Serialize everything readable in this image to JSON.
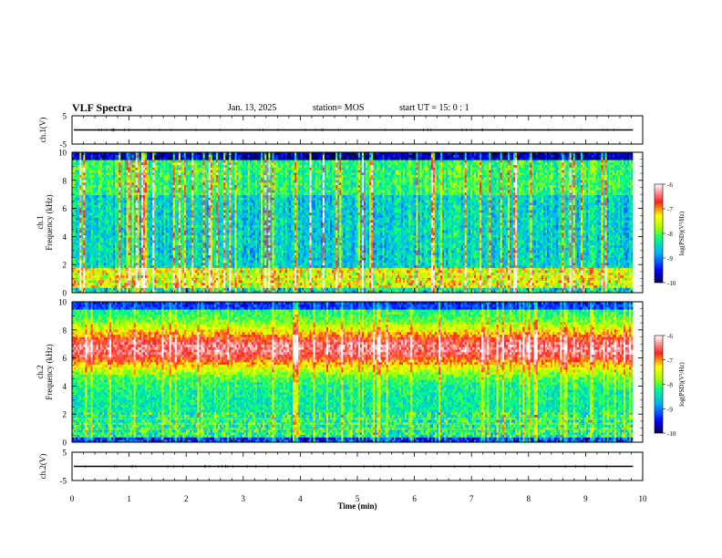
{
  "header": {
    "title": "VLF Spectra",
    "date": "Jan. 13, 2025",
    "station": "station= MOS",
    "start_ut": "start UT =   15: 0  : 1"
  },
  "chart_data": [
    {
      "id": "ch1-waveform",
      "type": "line",
      "ylabel": "ch.1(V)",
      "ylim": [
        -5,
        5
      ],
      "yticks": [
        "5",
        "-5"
      ],
      "xlim": [
        0,
        10
      ],
      "trace_level": 0,
      "trace_end": 9.83,
      "color": "#000000"
    },
    {
      "id": "ch1-spectrogram",
      "type": "heatmap",
      "ylabel": "ch.1",
      "ylabel2": "Frequency (kHz)",
      "ylim": [
        0,
        10
      ],
      "yticks": [
        "0",
        "2",
        "4",
        "6",
        "8",
        "10"
      ],
      "xlim": [
        0,
        10
      ],
      "data_end": 9.83,
      "colorbar": {
        "label": "log(PSD)(V²/Hz)",
        "range": [
          -10,
          -6
        ],
        "ticks": [
          "-6",
          "-7",
          "-8",
          "-9",
          "-10"
        ]
      }
    },
    {
      "id": "ch2-spectrogram",
      "type": "heatmap",
      "ylabel": "ch.2",
      "ylabel2": "Frequency (kHz)",
      "ylim": [
        0,
        10
      ],
      "yticks": [
        "0",
        "2",
        "4",
        "6",
        "8",
        "10"
      ],
      "xlim": [
        0,
        10
      ],
      "data_end": 9.83,
      "colorbar": {
        "label": "log(PSD)(V²/Hz)",
        "range": [
          -10,
          -6
        ],
        "ticks": [
          "-6",
          "-7",
          "-8",
          "-9",
          "-10"
        ]
      }
    },
    {
      "id": "ch2-waveform",
      "type": "line",
      "ylabel": "ch.2(V)",
      "ylim": [
        -5,
        5
      ],
      "yticks": [
        "5",
        "-5"
      ],
      "xlim": [
        0,
        10
      ],
      "trace_level": 0,
      "trace_end": 9.83,
      "color": "#000000"
    }
  ],
  "xaxis": {
    "label": "Time (min)",
    "ticks": [
      "0",
      "1",
      "2",
      "3",
      "4",
      "5",
      "6",
      "7",
      "8",
      "9",
      "10"
    ]
  }
}
